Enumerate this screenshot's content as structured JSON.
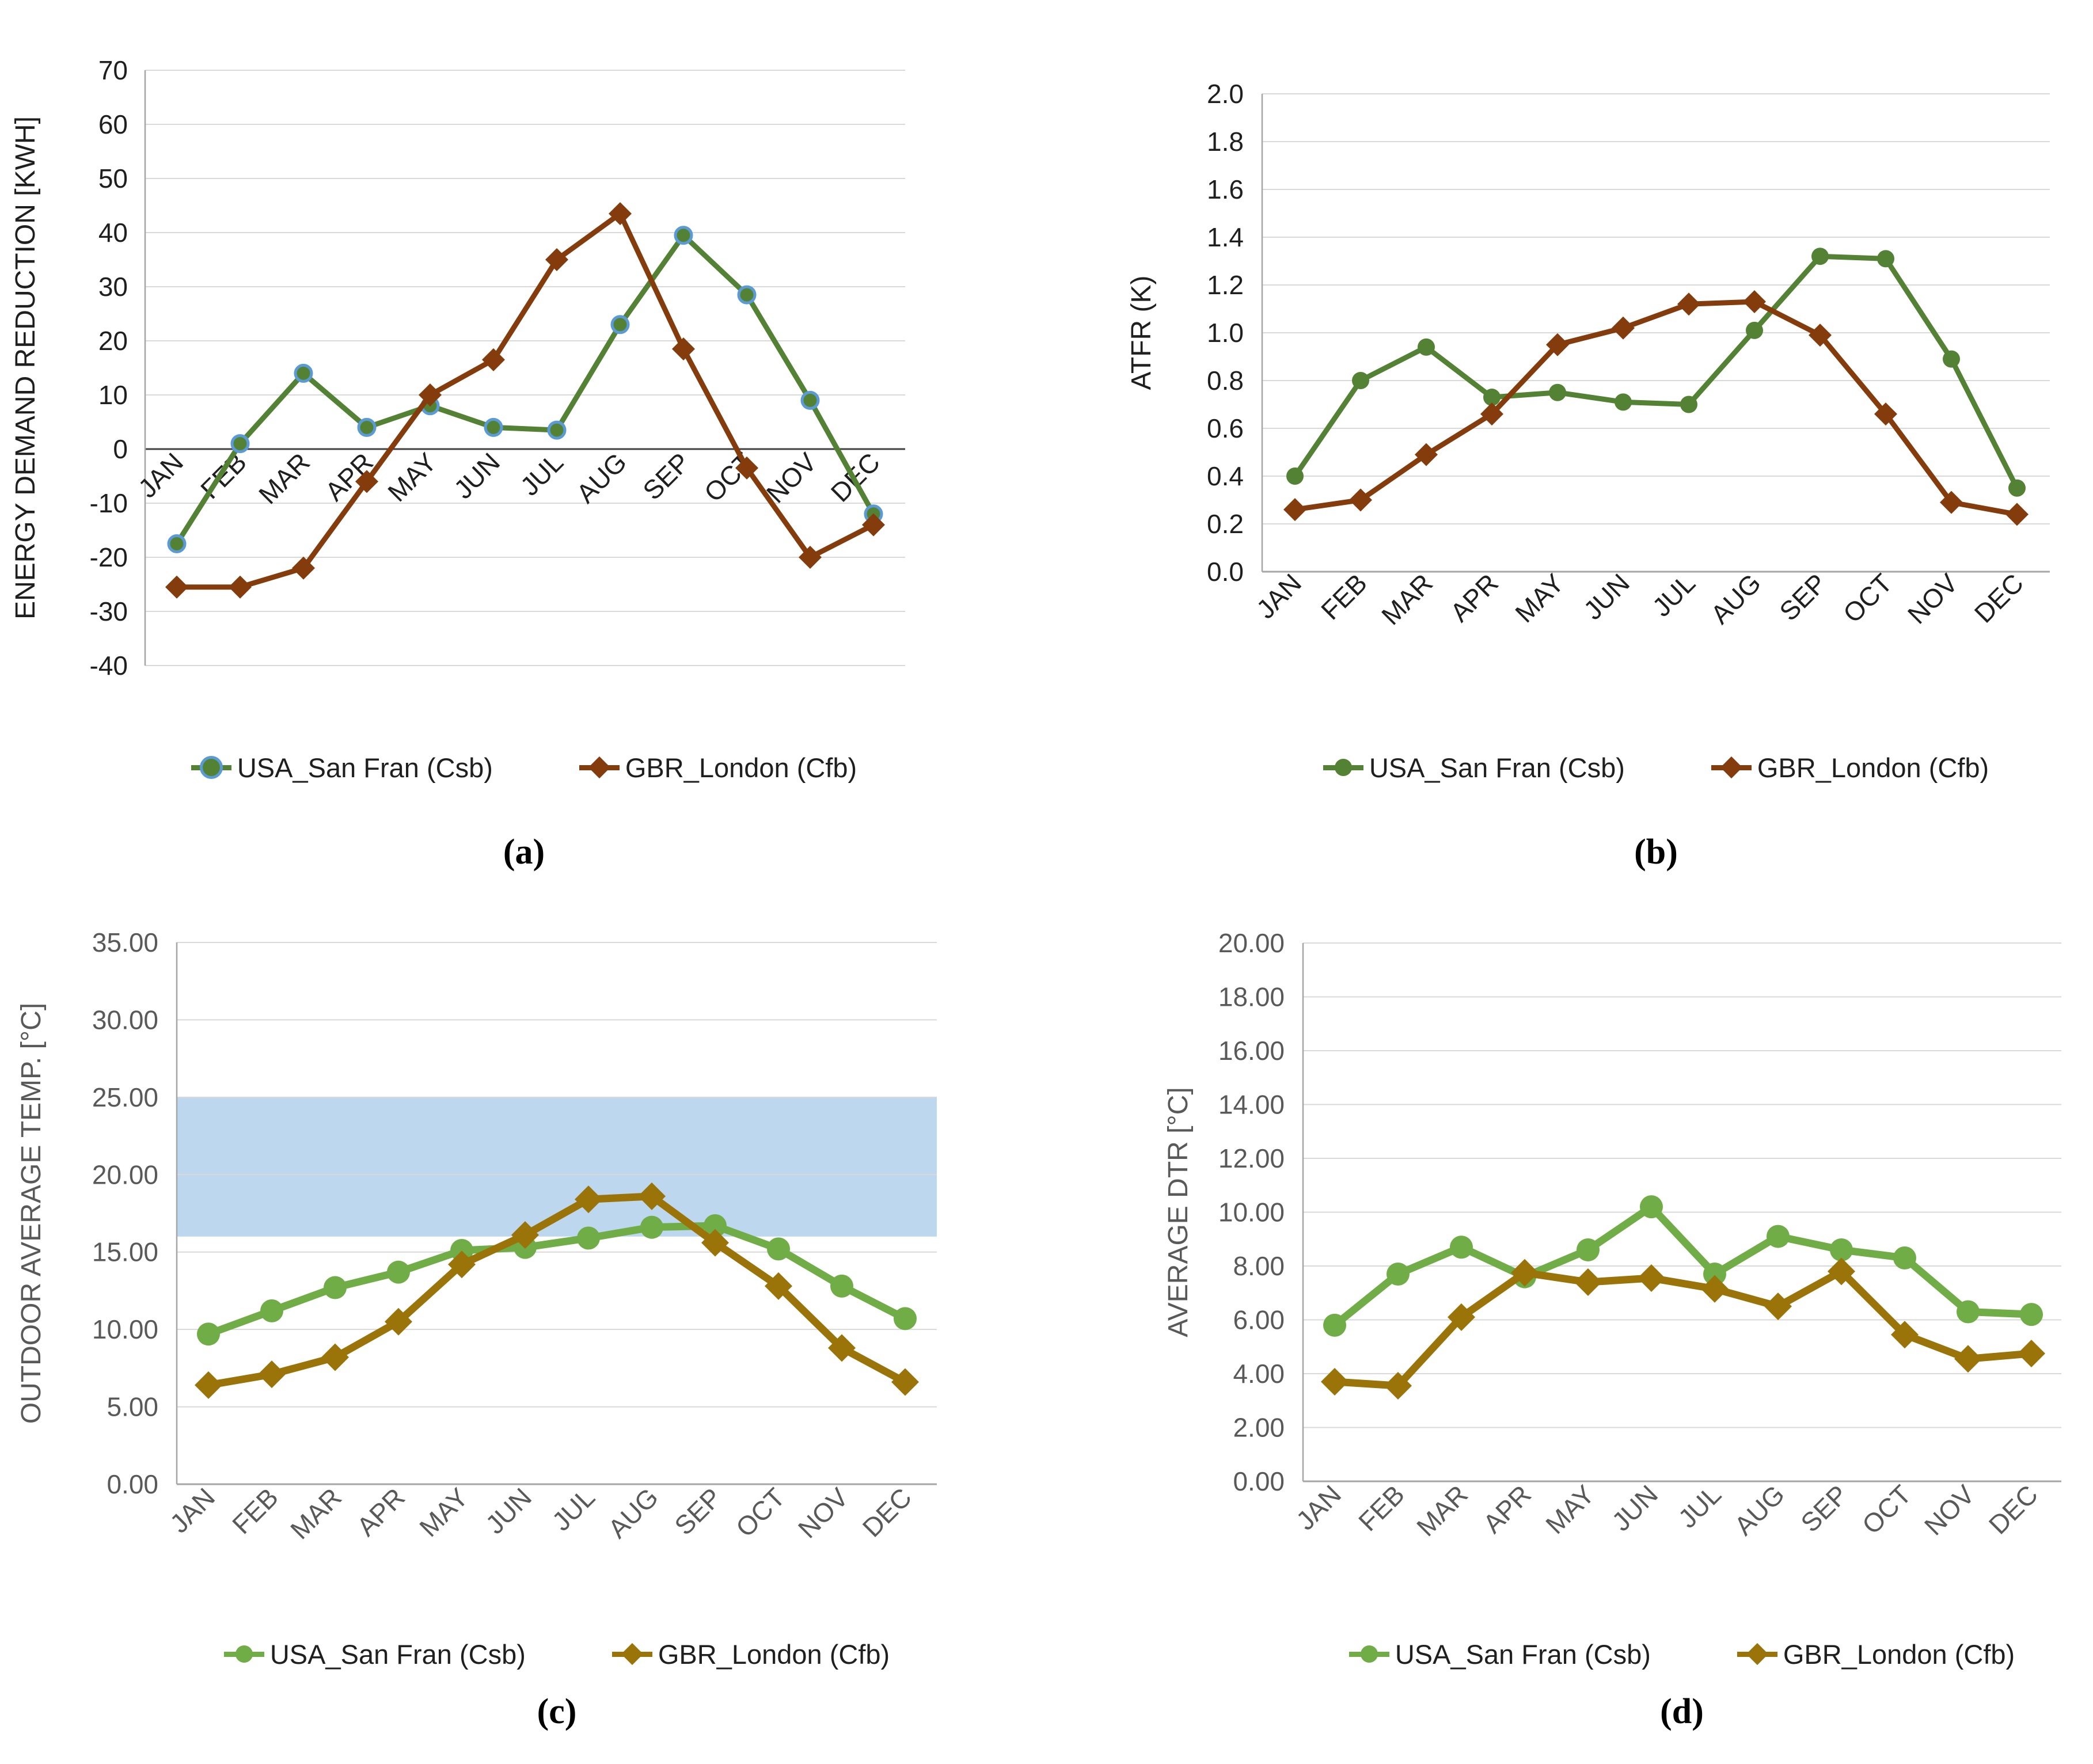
{
  "months": [
    "JAN",
    "FEB",
    "MAR",
    "APR",
    "MAY",
    "JUN",
    "JUL",
    "AUG",
    "SEP",
    "OCT",
    "NOV",
    "DEC"
  ],
  "colors": {
    "green_dark": "#548235",
    "green_marker_ring": "#5b9bd5",
    "brown_dark": "#843c0c",
    "green_light": "#70ad47",
    "olive": "#9a7409",
    "band_blue": "#bdd7ee",
    "gridline": "#d9d9d9",
    "axis_gray": "#a6a6a6",
    "zero_line": "#404040",
    "text_dark": "#1f1f1f",
    "text_gray": "#595959"
  },
  "chart_data": [
    {
      "id": "a",
      "type": "line",
      "caption": "(a)",
      "ylabel": "ENERGY DEMAND REDUCTION [KWH]",
      "ylim": [
        -40,
        70
      ],
      "ystep": 10,
      "ydecimals": 0,
      "grid": true,
      "zero_line": true,
      "labels_at_zero": true,
      "legend_position": "bottom",
      "categories": [
        "JAN",
        "FEB",
        "MAR",
        "APR",
        "MAY",
        "JUN",
        "JUL",
        "AUG",
        "SEP",
        "OCT",
        "NOV",
        "DEC"
      ],
      "series": [
        {
          "name": "USA_San Fran (Csb)",
          "color": "#548235",
          "marker": "circle",
          "marker_ring": "#5b9bd5",
          "values": [
            -17.5,
            1,
            14,
            4,
            8,
            4,
            3.5,
            23,
            39.5,
            28.5,
            9,
            -12
          ]
        },
        {
          "name": "GBR_London (Cfb)",
          "color": "#843c0c",
          "marker": "diamond",
          "values": [
            -25.5,
            -25.5,
            -22,
            -6,
            10,
            16.5,
            35,
            43.5,
            18.5,
            -3.5,
            -20,
            -14
          ]
        }
      ]
    },
    {
      "id": "b",
      "type": "line",
      "caption": "(b)",
      "ylabel": "ATFR (K)",
      "ylim": [
        0,
        2.0
      ],
      "ystep": 0.2,
      "ydecimals": 1,
      "grid": true,
      "zero_line": false,
      "labels_at_zero": false,
      "legend_position": "bottom",
      "categories": [
        "JAN",
        "FEB",
        "MAR",
        "APR",
        "MAY",
        "JUN",
        "JUL",
        "AUG",
        "SEP",
        "OCT",
        "NOV",
        "DEC"
      ],
      "series": [
        {
          "name": "USA_San Fran (Csb)",
          "color": "#548235",
          "marker": "circle",
          "values": [
            0.4,
            0.8,
            0.94,
            0.73,
            0.75,
            0.71,
            0.7,
            1.01,
            1.32,
            1.31,
            0.89,
            0.35
          ]
        },
        {
          "name": "GBR_London (Cfb)",
          "color": "#843c0c",
          "marker": "diamond",
          "values": [
            0.26,
            0.3,
            0.49,
            0.66,
            0.95,
            1.02,
            1.12,
            1.13,
            0.99,
            0.66,
            0.29,
            0.24
          ]
        }
      ]
    },
    {
      "id": "c",
      "type": "line",
      "caption": "(c)",
      "ylabel": "OUTDOOR AVERAGE TEMP. [°C]",
      "ylim": [
        0,
        35
      ],
      "ystep": 5,
      "ydecimals": 2,
      "grid": true,
      "zero_line": false,
      "labels_at_zero": false,
      "legend_position": "bottom",
      "band": {
        "from": 16,
        "to": 25,
        "color": "#bdd7ee"
      },
      "categories": [
        "JAN",
        "FEB",
        "MAR",
        "APR",
        "MAY",
        "JUN",
        "JUL",
        "AUG",
        "SEP",
        "OCT",
        "NOV",
        "DEC"
      ],
      "series": [
        {
          "name": "USA_San Fran (Csb)",
          "color": "#70ad47",
          "marker": "circle",
          "values": [
            9.7,
            11.2,
            12.7,
            13.7,
            15.1,
            15.3,
            15.9,
            16.6,
            16.7,
            15.2,
            12.8,
            10.7
          ]
        },
        {
          "name": "GBR_London (Cfb)",
          "color": "#9a7409",
          "marker": "diamond",
          "values": [
            6.4,
            7.1,
            8.2,
            10.5,
            14.2,
            16.1,
            18.4,
            18.6,
            15.6,
            12.8,
            8.8,
            6.6
          ]
        }
      ]
    },
    {
      "id": "d",
      "type": "line",
      "caption": "(d)",
      "ylabel": "AVERAGE DTR [°C]",
      "ylim": [
        0,
        20
      ],
      "ystep": 2,
      "ydecimals": 2,
      "grid": true,
      "zero_line": false,
      "labels_at_zero": false,
      "legend_position": "bottom",
      "categories": [
        "JAN",
        "FEB",
        "MAR",
        "APR",
        "MAY",
        "JUN",
        "JUL",
        "AUG",
        "SEP",
        "OCT",
        "NOV",
        "DEC"
      ],
      "series": [
        {
          "name": "USA_San Fran (Csb)",
          "color": "#70ad47",
          "marker": "circle",
          "values": [
            5.8,
            7.7,
            8.7,
            7.6,
            8.6,
            10.2,
            7.7,
            9.1,
            8.6,
            8.3,
            6.3,
            6.2
          ]
        },
        {
          "name": "GBR_London (Cfb)",
          "color": "#9a7409",
          "marker": "diamond",
          "values": [
            3.7,
            3.55,
            6.1,
            7.75,
            7.4,
            7.55,
            7.15,
            6.5,
            7.8,
            5.45,
            4.55,
            4.75
          ]
        }
      ]
    }
  ]
}
